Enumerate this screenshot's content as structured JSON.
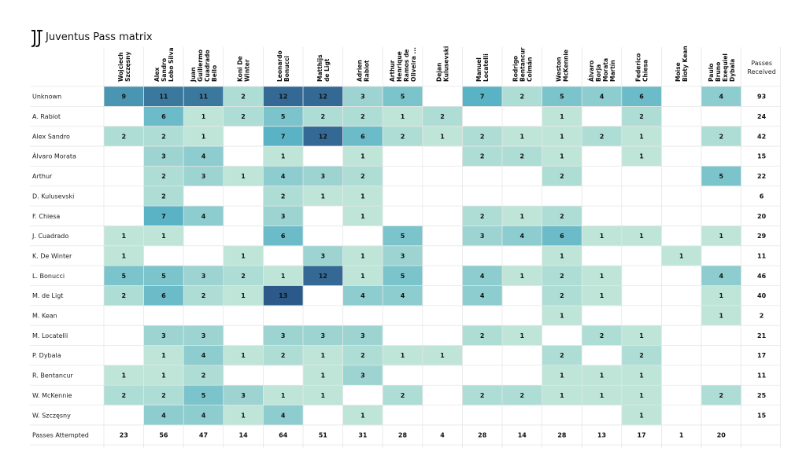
{
  "title": "Juventus Pass matrix",
  "logo": "juventus-logo",
  "chart_data": {
    "type": "heatmap",
    "title": "Juventus Pass matrix",
    "columns": [
      [
        "Wojciech",
        "Szczęsny"
      ],
      [
        "Alex",
        "Sandro",
        "Lobo Silva"
      ],
      [
        "Juan",
        "Guillermo",
        "Cuadrado",
        "Bello"
      ],
      [
        "Koni De",
        "Winter"
      ],
      [
        "Leonardo",
        "Bonucci"
      ],
      [
        "Matthijs",
        "de Ligt"
      ],
      [
        "Adrien",
        "Rabiot"
      ],
      [
        "Arthur",
        "Henrique",
        "Ramos de",
        "Oliveira ..."
      ],
      [
        "Dejan",
        "Kulusevski"
      ],
      [
        "Manuel",
        "Locatelli"
      ],
      [
        "Rodrigo",
        "Bentancur",
        "Colmán"
      ],
      [
        "Weston",
        "McKennie"
      ],
      [
        "Álvaro",
        "Borja",
        "Morata",
        "Martín"
      ],
      [
        "Federico",
        "Chiesa"
      ],
      [
        "Moise",
        "Bioty Kean"
      ],
      [
        "Paulo",
        "Bruno",
        "Exequiel",
        "Dybala"
      ]
    ],
    "received_header": [
      "Passes",
      "Received"
    ],
    "rows": [
      "Unknown",
      "A. Rabiot",
      "Alex Sandro",
      "Álvaro Morata",
      "Arthur",
      "D. Kulusevski",
      "F. Chiesa",
      "J. Cuadrado",
      "K. De Winter",
      "L. Bonucci",
      "M. de Ligt",
      "M. Kean",
      "M. Locatelli",
      "P. Dybala",
      "R. Bentancur",
      "W. McKennie",
      "W. Szczęsny"
    ],
    "values": [
      [
        9,
        11,
        11,
        2,
        12,
        12,
        3,
        5,
        null,
        7,
        2,
        5,
        4,
        6,
        null,
        4
      ],
      [
        null,
        6,
        1,
        2,
        5,
        2,
        2,
        1,
        2,
        null,
        null,
        1,
        null,
        2,
        null,
        null
      ],
      [
        2,
        2,
        1,
        null,
        7,
        12,
        6,
        2,
        1,
        2,
        1,
        1,
        2,
        1,
        null,
        2
      ],
      [
        null,
        3,
        4,
        null,
        1,
        null,
        1,
        null,
        null,
        2,
        2,
        1,
        null,
        1,
        null,
        null
      ],
      [
        null,
        2,
        3,
        1,
        4,
        3,
        2,
        null,
        null,
        null,
        null,
        2,
        null,
        null,
        null,
        5
      ],
      [
        null,
        2,
        null,
        null,
        2,
        1,
        1,
        null,
        null,
        null,
        null,
        null,
        null,
        null,
        null,
        null
      ],
      [
        null,
        7,
        4,
        null,
        3,
        null,
        1,
        null,
        null,
        2,
        1,
        2,
        null,
        null,
        null,
        null
      ],
      [
        1,
        1,
        null,
        null,
        6,
        null,
        null,
        5,
        null,
        3,
        4,
        6,
        1,
        1,
        null,
        1
      ],
      [
        1,
        null,
        null,
        1,
        null,
        3,
        1,
        3,
        null,
        null,
        null,
        1,
        null,
        null,
        1,
        null
      ],
      [
        5,
        5,
        3,
        2,
        1,
        12,
        1,
        5,
        null,
        4,
        1,
        2,
        1,
        null,
        null,
        4
      ],
      [
        2,
        6,
        2,
        1,
        13,
        null,
        4,
        4,
        null,
        4,
        null,
        2,
        1,
        null,
        null,
        1
      ],
      [
        null,
        null,
        null,
        null,
        null,
        null,
        null,
        null,
        null,
        null,
        null,
        1,
        null,
        null,
        null,
        1
      ],
      [
        null,
        3,
        3,
        null,
        3,
        3,
        3,
        null,
        null,
        2,
        1,
        null,
        2,
        1,
        null,
        null
      ],
      [
        null,
        1,
        4,
        1,
        2,
        1,
        2,
        1,
        1,
        null,
        null,
        2,
        null,
        2,
        null,
        null
      ],
      [
        1,
        1,
        2,
        null,
        null,
        1,
        3,
        null,
        null,
        null,
        null,
        1,
        1,
        1,
        null,
        null
      ],
      [
        2,
        2,
        5,
        3,
        1,
        1,
        null,
        2,
        null,
        2,
        2,
        1,
        1,
        1,
        null,
        2
      ],
      [
        null,
        4,
        4,
        1,
        4,
        null,
        1,
        null,
        null,
        null,
        null,
        null,
        null,
        1,
        null,
        null
      ]
    ],
    "passes_received": [
      93,
      24,
      42,
      15,
      22,
      6,
      20,
      29,
      11,
      46,
      40,
      2,
      21,
      17,
      11,
      25,
      15
    ],
    "attempted_label": "Passes Attempted",
    "passes_attempted": [
      23,
      56,
      47,
      14,
      64,
      51,
      31,
      28,
      4,
      28,
      14,
      28,
      13,
      17,
      1,
      20
    ],
    "colors": {
      "low": "#bfe5d9",
      "mid": "#5ab3c4",
      "high": "#2b5a8a"
    }
  }
}
